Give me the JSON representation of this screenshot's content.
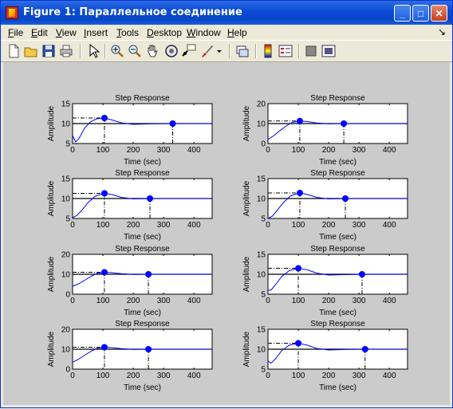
{
  "window": {
    "title": "Figure 1: Параллельное соединение"
  },
  "menu": [
    {
      "label": "File",
      "accel": "F",
      "rest": "ile"
    },
    {
      "label": "Edit",
      "accel": "E",
      "rest": "dit"
    },
    {
      "label": "View",
      "accel": "V",
      "rest": "iew"
    },
    {
      "label": "Insert",
      "accel": "I",
      "rest": "nsert"
    },
    {
      "label": "Tools",
      "accel": "T",
      "rest": "ools"
    },
    {
      "label": "Desktop",
      "accel": "D",
      "rest": "esktop"
    },
    {
      "label": "Window",
      "accel": "W",
      "rest": "indow"
    },
    {
      "label": "Help",
      "accel": "H",
      "rest": "elp"
    }
  ],
  "toolbar_icons": [
    "new-figure-icon",
    "open-file-icon",
    "save-icon",
    "print-icon",
    "edit-plot-arrow-icon",
    "zoom-in-icon",
    "zoom-out-icon",
    "pan-hand-icon",
    "rotate-3d-icon",
    "data-cursor-icon",
    "brush-icon",
    "brush-dropdown-icon",
    "link-plot-icon",
    "colorbar-icon",
    "legend-icon",
    "hide-plot-tools-icon",
    "show-plot-tools-icon"
  ],
  "colors": {
    "response": "#0000ff",
    "marker": "#0000ff",
    "axes_bg": "#ffffff",
    "figure_bg": "#cbcbcb"
  },
  "chart_data": [
    {
      "type": "line",
      "title": "Step Response",
      "xlabel": "Time (sec)",
      "ylabel": "Amplitude",
      "xlim": [
        0,
        460
      ],
      "ylim": [
        5,
        15
      ],
      "yticks": [
        5,
        10,
        15
      ],
      "xticks": [
        0,
        100,
        200,
        300,
        400
      ],
      "final": 10,
      "peak": [
        105,
        11.4
      ],
      "settle": [
        330,
        10
      ],
      "curve": {
        "x": [
          0,
          10,
          20,
          40,
          60,
          80,
          105,
          130,
          160,
          200,
          260,
          330,
          460
        ],
        "y": [
          7.0,
          5.4,
          6.1,
          8.9,
          10.5,
          11.2,
          11.4,
          10.9,
          10.2,
          9.8,
          9.95,
          10.0,
          10.0
        ]
      }
    },
    {
      "type": "line",
      "title": "Step Response",
      "xlabel": "Time (sec)",
      "ylabel": "Amplitude",
      "xlim": [
        0,
        460
      ],
      "ylim": [
        0,
        20
      ],
      "yticks": [
        0,
        10,
        20
      ],
      "xticks": [
        0,
        100,
        200,
        300,
        400
      ],
      "final": 10,
      "peak": [
        105,
        11.3
      ],
      "settle": [
        250,
        10
      ],
      "curve": {
        "x": [
          0,
          20,
          40,
          60,
          80,
          105,
          130,
          160,
          200,
          250,
          300,
          460
        ],
        "y": [
          2.0,
          4.0,
          6.5,
          8.8,
          10.6,
          11.3,
          11.0,
          10.3,
          9.9,
          10.0,
          10.0,
          10.0
        ]
      }
    },
    {
      "type": "line",
      "title": "Step Response",
      "xlabel": "Time (sec)",
      "ylabel": "Amplitude",
      "xlim": [
        0,
        460
      ],
      "ylim": [
        5,
        15
      ],
      "yticks": [
        5,
        10,
        15
      ],
      "xticks": [
        0,
        100,
        200,
        300,
        400
      ],
      "final": 10,
      "peak": [
        105,
        11.3
      ],
      "settle": [
        255,
        10
      ],
      "curve": {
        "x": [
          0,
          15,
          30,
          50,
          75,
          105,
          130,
          160,
          200,
          255,
          300,
          460
        ],
        "y": [
          5.2,
          5.8,
          7.0,
          8.9,
          10.6,
          11.3,
          11.0,
          10.3,
          9.9,
          10.0,
          10.0,
          10.0
        ]
      }
    },
    {
      "type": "line",
      "title": "Step Response",
      "xlabel": "Time (sec)",
      "ylabel": "Amplitude",
      "xlim": [
        0,
        460
      ],
      "ylim": [
        5,
        15
      ],
      "yticks": [
        5,
        10,
        15
      ],
      "xticks": [
        0,
        100,
        200,
        300,
        400
      ],
      "final": 10,
      "peak": [
        105,
        11.4
      ],
      "settle": [
        255,
        10
      ],
      "curve": {
        "x": [
          0,
          15,
          30,
          50,
          75,
          105,
          130,
          160,
          200,
          255,
          300,
          460
        ],
        "y": [
          5.0,
          5.6,
          7.0,
          8.9,
          10.7,
          11.4,
          11.0,
          10.3,
          9.9,
          10.0,
          10.0,
          10.0
        ]
      }
    },
    {
      "type": "line",
      "title": "Step Response",
      "xlabel": "Time (sec)",
      "ylabel": "Amplitude",
      "xlim": [
        0,
        460
      ],
      "ylim": [
        0,
        20
      ],
      "yticks": [
        0,
        10,
        20
      ],
      "xticks": [
        0,
        100,
        200,
        300,
        400
      ],
      "final": 10,
      "peak": [
        105,
        11.0
      ],
      "settle": [
        250,
        10
      ],
      "curve": {
        "x": [
          0,
          20,
          40,
          60,
          80,
          105,
          130,
          160,
          200,
          250,
          300,
          460
        ],
        "y": [
          4.0,
          5.2,
          7.0,
          8.9,
          10.4,
          11.0,
          10.8,
          10.3,
          9.9,
          10.0,
          10.0,
          10.0
        ]
      }
    },
    {
      "type": "line",
      "title": "Step Response",
      "xlabel": "Time (sec)",
      "ylabel": "Amplitude",
      "xlim": [
        0,
        460
      ],
      "ylim": [
        5,
        15
      ],
      "yticks": [
        5,
        10,
        15
      ],
      "xticks": [
        0,
        100,
        200,
        300,
        400
      ],
      "final": 10,
      "peak": [
        100,
        11.5
      ],
      "settle": [
        310,
        10
      ],
      "curve": {
        "x": [
          0,
          10,
          25,
          45,
          70,
          100,
          130,
          160,
          200,
          250,
          310,
          460
        ],
        "y": [
          6.0,
          6.0,
          7.4,
          9.4,
          10.9,
          11.5,
          11.1,
          10.3,
          9.8,
          9.9,
          10.0,
          10.0
        ]
      }
    },
    {
      "type": "line",
      "title": "Step Response",
      "xlabel": "Time (sec)",
      "ylabel": "Amplitude",
      "xlim": [
        0,
        460
      ],
      "ylim": [
        0,
        20
      ],
      "yticks": [
        0,
        10,
        20
      ],
      "xticks": [
        0,
        100,
        200,
        300,
        400
      ],
      "final": 10,
      "peak": [
        105,
        11.0
      ],
      "settle": [
        250,
        10
      ],
      "curve": {
        "x": [
          0,
          20,
          40,
          60,
          80,
          105,
          130,
          160,
          200,
          250,
          300,
          460
        ],
        "y": [
          3.5,
          5.0,
          7.0,
          8.9,
          10.4,
          11.0,
          10.8,
          10.3,
          9.9,
          10.0,
          10.0,
          10.0
        ]
      }
    },
    {
      "type": "line",
      "title": "Step Response",
      "xlabel": "Time (sec)",
      "ylabel": "Amplitude",
      "xlim": [
        0,
        460
      ],
      "ylim": [
        5,
        15
      ],
      "yticks": [
        5,
        10,
        15
      ],
      "xticks": [
        0,
        100,
        200,
        300,
        400
      ],
      "final": 10,
      "peak": [
        100,
        11.5
      ],
      "settle": [
        320,
        10
      ],
      "curve": {
        "x": [
          0,
          10,
          25,
          45,
          70,
          100,
          130,
          160,
          200,
          260,
          320,
          460
        ],
        "y": [
          7.0,
          6.5,
          7.6,
          9.6,
          11.0,
          11.5,
          11.0,
          10.2,
          9.8,
          9.95,
          10.0,
          10.0
        ]
      }
    }
  ]
}
